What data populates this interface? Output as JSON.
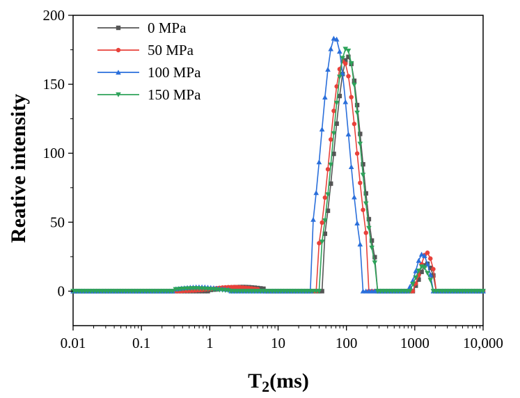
{
  "chart_data": {
    "type": "line",
    "xlabel_main": "T",
    "xlabel_sub": "2",
    "xlabel_rest": "(ms)",
    "ylabel": "Reative intensity",
    "x_scale": "log",
    "xlim": [
      0.01,
      10000
    ],
    "ylim": [
      -25,
      200
    ],
    "x_ticks": [
      {
        "value": 0.01,
        "label": "0.01"
      },
      {
        "value": 0.1,
        "label": "0.1"
      },
      {
        "value": 1,
        "label": "1"
      },
      {
        "value": 10,
        "label": "10"
      },
      {
        "value": 100,
        "label": "100"
      },
      {
        "value": 1000,
        "label": "1000"
      },
      {
        "value": 10000,
        "label": "10,000"
      }
    ],
    "y_ticks": [
      {
        "value": 0,
        "label": "0"
      },
      {
        "value": 50,
        "label": "50"
      },
      {
        "value": 100,
        "label": "100"
      },
      {
        "value": 150,
        "label": "150"
      },
      {
        "value": 200,
        "label": "200"
      }
    ],
    "grid": false,
    "legend_position": "top-left",
    "series": [
      {
        "name": "0 MPa",
        "color": "#555555",
        "marker": "square",
        "peaks": [
          {
            "center": 3.0,
            "height": 3,
            "width": 0.3
          },
          {
            "center": 105,
            "height": 170,
            "width": 0.2
          },
          {
            "center": 1500,
            "height": 20,
            "width": 0.09
          }
        ],
        "nonzero": [
          [
            1.0,
            6.5
          ],
          [
            45,
            260
          ],
          [
            1000,
            2000
          ]
        ]
      },
      {
        "name": "50 MPa",
        "color": "#e8413a",
        "marker": "circle",
        "peaks": [
          {
            "center": 2.2,
            "height": 3,
            "width": 0.3
          },
          {
            "center": 90,
            "height": 167,
            "width": 0.2
          },
          {
            "center": 1500,
            "height": 28,
            "width": 0.09
          }
        ],
        "nonzero": [
          [
            0.4,
            5.5
          ],
          [
            38,
            210
          ],
          [
            950,
            2000
          ]
        ]
      },
      {
        "name": "100 MPa",
        "color": "#2a6fdb",
        "marker": "triangle-up",
        "peaks": [
          {
            "center": 0.7,
            "height": 3,
            "width": 0.3
          },
          {
            "center": 68,
            "height": 184,
            "width": 0.2
          },
          {
            "center": 1300,
            "height": 27,
            "width": 0.09
          }
        ],
        "nonzero": [
          [
            0.3,
            2.0
          ],
          [
            30,
            170
          ],
          [
            800,
            1800
          ]
        ]
      },
      {
        "name": "150 MPa",
        "color": "#2ea35a",
        "marker": "triangle-down",
        "peaks": [
          {
            "center": 0.6,
            "height": 2,
            "width": 0.3
          },
          {
            "center": 100,
            "height": 176,
            "width": 0.2
          },
          {
            "center": 1300,
            "height": 18,
            "width": 0.09
          }
        ],
        "nonzero": [
          [
            0.3,
            2.0
          ],
          [
            40,
            270
          ],
          [
            850,
            1700
          ]
        ]
      }
    ]
  }
}
